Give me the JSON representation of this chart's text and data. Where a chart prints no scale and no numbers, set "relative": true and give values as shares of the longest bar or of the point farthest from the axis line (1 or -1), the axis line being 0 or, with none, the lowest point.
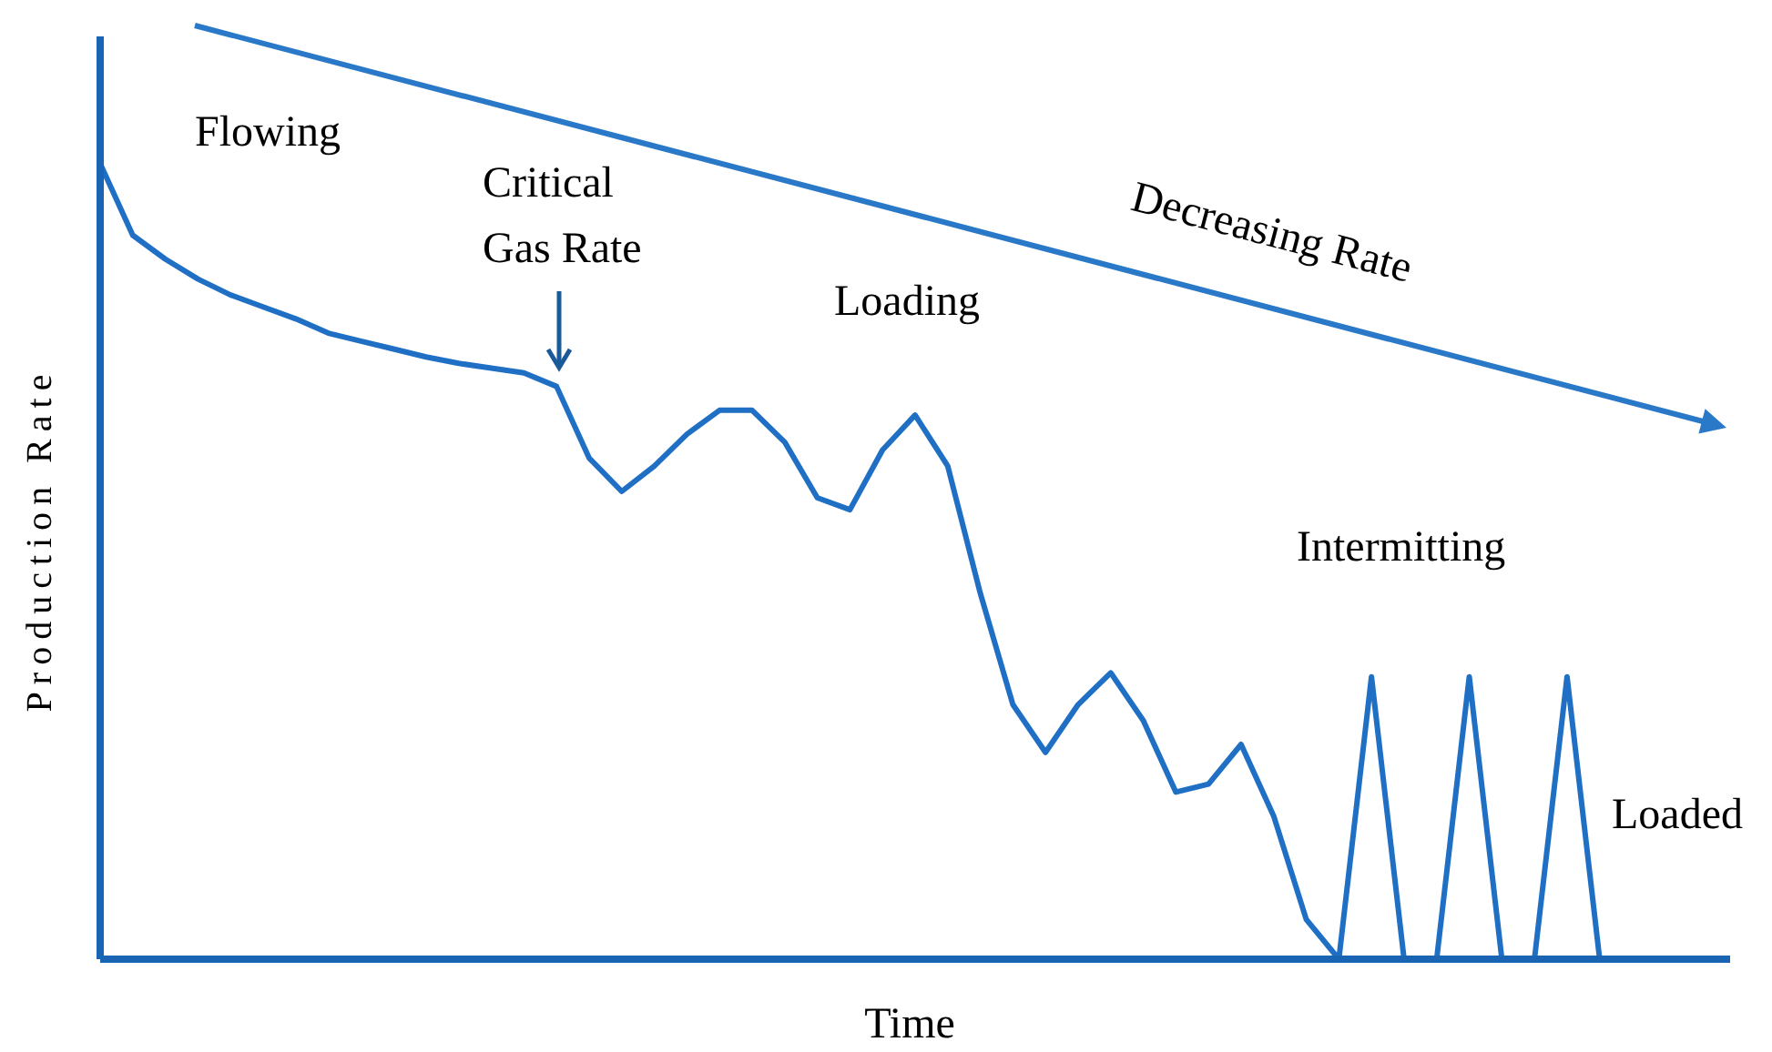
{
  "chart_data": {
    "type": "line",
    "relative": true,
    "grid": false,
    "legend": false,
    "marker": "none",
    "line_style": "solid",
    "xlabel": "Time",
    "ylabel": "Production Rate",
    "categories": [
      null,
      null,
      null,
      null,
      null,
      null,
      null,
      null,
      null,
      null,
      null,
      null,
      null,
      null,
      null,
      null,
      null,
      null,
      null,
      null,
      null,
      null,
      null,
      null,
      null,
      null,
      null,
      null,
      null,
      null,
      null,
      null,
      null,
      null,
      null,
      null,
      null,
      null,
      null,
      null,
      null,
      null,
      null,
      null,
      null,
      null,
      null
    ],
    "series": [
      {
        "color": "#1f6fc5",
        "values": [
          1.0,
          0.91,
          0.88,
          0.855,
          0.835,
          0.82,
          0.805,
          0.787,
          0.777,
          0.767,
          0.757,
          0.749,
          0.743,
          0.737,
          0.72,
          0.63,
          0.588,
          0.62,
          0.66,
          0.69,
          0.69,
          0.65,
          0.58,
          0.565,
          0.64,
          0.684,
          0.62,
          0.46,
          0.32,
          0.26,
          0.32,
          0.36,
          0.3,
          0.21,
          0.22,
          0.27,
          0.18,
          0.05,
          0,
          0.355,
          0,
          0,
          0.355,
          0,
          0,
          0.355,
          0
        ]
      }
    ],
    "annotations": [
      "Flowing",
      "Critical Gas Rate",
      "Decreasing Rate",
      "Loading",
      "Intermitting",
      "Loaded"
    ]
  }
}
